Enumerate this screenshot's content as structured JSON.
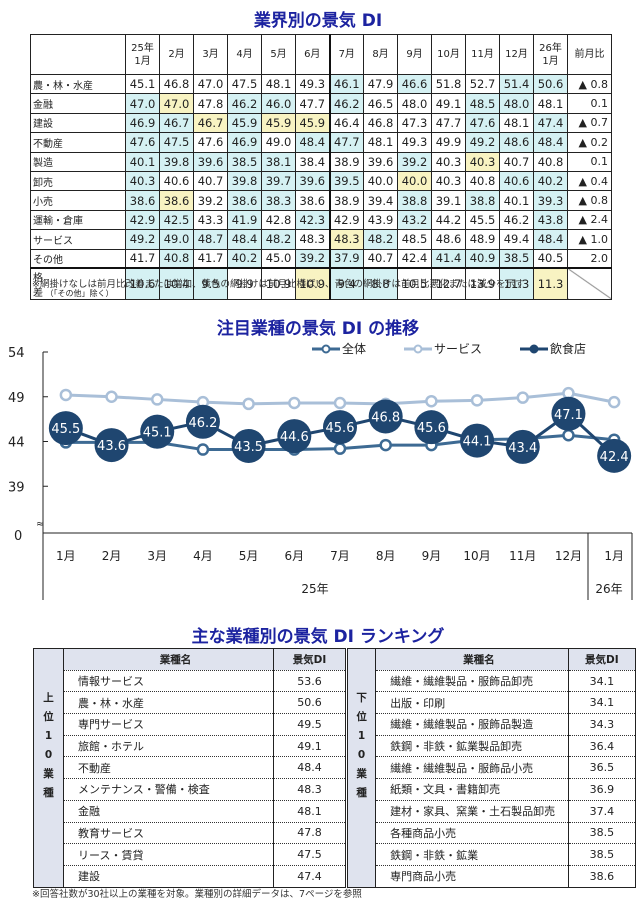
{
  "section1": {
    "title": "業界別の景気 DI",
    "columns": [
      "25年\n1月",
      "2月",
      "3月",
      "4月",
      "5月",
      "6月",
      "7月",
      "8月",
      "9月",
      "10月",
      "11月",
      "12月",
      "26年\n1月",
      "前月比"
    ],
    "rows": [
      {
        "label": "農・林・水産",
        "values": [
          "45.1",
          "46.8",
          "47.0",
          "47.5",
          "48.1",
          "49.3",
          "46.1",
          "47.9",
          "46.6",
          "51.8",
          "52.7",
          "51.4",
          "50.6"
        ],
        "shade": [
          "w",
          "w",
          "w",
          "w",
          "w",
          "w",
          "b",
          "w",
          "b",
          "w",
          "w",
          "b",
          "b"
        ],
        "change": "▲ 0.8"
      },
      {
        "label": "金融",
        "values": [
          "47.0",
          "47.0",
          "47.8",
          "46.2",
          "46.0",
          "47.7",
          "46.2",
          "46.5",
          "48.0",
          "49.1",
          "48.5",
          "48.0",
          "48.1"
        ],
        "shade": [
          "b",
          "y",
          "w",
          "b",
          "b",
          "w",
          "b",
          "w",
          "w",
          "w",
          "b",
          "b",
          "w"
        ],
        "change": "0.1"
      },
      {
        "label": "建設",
        "values": [
          "46.9",
          "46.7",
          "46.7",
          "45.9",
          "45.9",
          "45.9",
          "46.4",
          "46.8",
          "47.3",
          "47.7",
          "47.6",
          "48.1",
          "47.4"
        ],
        "shade": [
          "b",
          "b",
          "y",
          "b",
          "y",
          "y",
          "w",
          "w",
          "w",
          "w",
          "b",
          "w",
          "b"
        ],
        "change": "▲ 0.7"
      },
      {
        "label": "不動産",
        "values": [
          "47.6",
          "47.5",
          "47.6",
          "46.9",
          "49.0",
          "48.4",
          "47.7",
          "48.1",
          "49.3",
          "49.9",
          "49.2",
          "48.6",
          "48.4"
        ],
        "shade": [
          "b",
          "b",
          "w",
          "b",
          "w",
          "b",
          "b",
          "w",
          "w",
          "w",
          "b",
          "b",
          "b"
        ],
        "change": "▲ 0.2"
      },
      {
        "label": "製造",
        "values": [
          "40.1",
          "39.8",
          "39.6",
          "38.5",
          "38.1",
          "38.4",
          "38.9",
          "39.6",
          "39.2",
          "40.3",
          "40.3",
          "40.7",
          "40.8"
        ],
        "shade": [
          "b",
          "b",
          "b",
          "b",
          "b",
          "w",
          "w",
          "w",
          "b",
          "w",
          "y",
          "w",
          "w"
        ],
        "change": "0.1"
      },
      {
        "label": "卸売",
        "values": [
          "40.3",
          "40.6",
          "40.7",
          "39.8",
          "39.7",
          "39.6",
          "39.5",
          "40.0",
          "40.0",
          "40.3",
          "40.8",
          "40.6",
          "40.2"
        ],
        "shade": [
          "b",
          "w",
          "w",
          "b",
          "b",
          "b",
          "b",
          "w",
          "y",
          "w",
          "w",
          "b",
          "b"
        ],
        "change": "▲ 0.4"
      },
      {
        "label": "小売",
        "values": [
          "38.6",
          "38.6",
          "39.2",
          "38.6",
          "38.3",
          "38.6",
          "38.9",
          "39.4",
          "38.8",
          "39.1",
          "38.8",
          "40.1",
          "39.3"
        ],
        "shade": [
          "b",
          "y",
          "w",
          "b",
          "b",
          "w",
          "w",
          "w",
          "b",
          "w",
          "b",
          "w",
          "b"
        ],
        "change": "▲ 0.8"
      },
      {
        "label": "運輸・倉庫",
        "values": [
          "42.9",
          "42.5",
          "43.3",
          "41.9",
          "42.8",
          "42.3",
          "42.9",
          "43.9",
          "43.2",
          "44.2",
          "45.5",
          "46.2",
          "43.8"
        ],
        "shade": [
          "b",
          "b",
          "w",
          "b",
          "w",
          "b",
          "w",
          "w",
          "b",
          "w",
          "w",
          "w",
          "b"
        ],
        "change": "▲ 2.4"
      },
      {
        "label": "サービス",
        "values": [
          "49.2",
          "49.0",
          "48.7",
          "48.4",
          "48.2",
          "48.3",
          "48.3",
          "48.2",
          "48.5",
          "48.6",
          "48.9",
          "49.4",
          "48.4"
        ],
        "shade": [
          "b",
          "b",
          "b",
          "b",
          "b",
          "w",
          "y",
          "b",
          "w",
          "w",
          "w",
          "w",
          "b"
        ],
        "change": "▲ 1.0"
      },
      {
        "label": "その他",
        "values": [
          "41.7",
          "40.8",
          "41.7",
          "40.2",
          "45.0",
          "39.2",
          "37.9",
          "40.7",
          "42.4",
          "41.4",
          "40.9",
          "38.5",
          "40.5"
        ],
        "shade": [
          "w",
          "b",
          "w",
          "b",
          "w",
          "b",
          "b",
          "w",
          "w",
          "b",
          "b",
          "b",
          "w"
        ],
        "change": "2.0"
      }
    ],
    "diff_row": {
      "label": "格差",
      "label_note": "（「その他」除く）",
      "values": [
        "10.6",
        "10.4",
        "9.5",
        "9.9",
        "10.9",
        "10.9",
        "9.4",
        "8.8",
        "10.5",
        "12.7",
        "13.9",
        "11.3",
        "11.3"
      ],
      "shade": [
        "b",
        "b",
        "b",
        "w",
        "w",
        "y",
        "b",
        "b",
        "w",
        "w",
        "w",
        "b",
        "y"
      ],
      "change": ""
    },
    "note": "※網掛けなしは前月比改善または増加、黄色の網掛けは前月比横ばい、青色の網掛けは前月比悪化または減少を示す",
    "colors": {
      "blue": "#d5f1f3",
      "yellow": "#f8f3c2"
    }
  },
  "chart_data": {
    "type": "line",
    "title": "注目業種の景気 DI の推移",
    "categories": [
      "1月",
      "2月",
      "3月",
      "4月",
      "5月",
      "6月",
      "7月",
      "8月",
      "9月",
      "10月",
      "11月",
      "12月",
      "1月"
    ],
    "year_labels": [
      {
        "label": "25年",
        "span": 12
      },
      {
        "label": "26年",
        "span": 1
      }
    ],
    "yticks": [
      0,
      39,
      44,
      49,
      54
    ],
    "ylim": [
      39,
      54
    ],
    "axis_break": true,
    "legend_position": "top-right",
    "series": [
      {
        "name": "全体",
        "color": "#3d6a93",
        "values": [
          43.9,
          43.9,
          43.9,
          43.1,
          43.1,
          43.1,
          43.2,
          43.6,
          43.6,
          44.2,
          44.3,
          44.7,
          44.2
        ]
      },
      {
        "name": "サービス",
        "color": "#a9bfd8",
        "values": [
          49.2,
          49.0,
          48.7,
          48.4,
          48.2,
          48.3,
          48.3,
          48.2,
          48.5,
          48.6,
          48.9,
          49.4,
          48.4
        ]
      },
      {
        "name": "飲食店",
        "color": "#1f4670",
        "values": [
          45.5,
          43.6,
          45.1,
          46.2,
          43.5,
          44.6,
          45.6,
          46.8,
          45.6,
          44.1,
          43.4,
          47.1,
          42.4
        ],
        "labeled": true
      }
    ]
  },
  "section3": {
    "title": "主な業種別の景気 DI ランキング",
    "col_name": "業種名",
    "col_value": "景気DI",
    "top_label": "上位10業種",
    "bottom_label": "下位10業種",
    "top": [
      {
        "name": "情報サービス",
        "value": "53.6"
      },
      {
        "name": "農・林・水産",
        "value": "50.6"
      },
      {
        "name": "専門サービス",
        "value": "49.5"
      },
      {
        "name": "旅館・ホテル",
        "value": "49.1"
      },
      {
        "name": "不動産",
        "value": "48.4"
      },
      {
        "name": "メンテナンス・警備・検査",
        "value": "48.3"
      },
      {
        "name": "金融",
        "value": "48.1"
      },
      {
        "name": "教育サービス",
        "value": "47.8"
      },
      {
        "name": "リース・賃貸",
        "value": "47.5"
      },
      {
        "name": "建設",
        "value": "47.4"
      }
    ],
    "bottom": [
      {
        "name": "繊維・繊維製品・服飾品卸売",
        "value": "34.1"
      },
      {
        "name": "出版・印刷",
        "value": "34.1"
      },
      {
        "name": "繊維・繊維製品・服飾品製造",
        "value": "34.3"
      },
      {
        "name": "鉄鋼・非鉄・鉱業製品卸売",
        "value": "36.4"
      },
      {
        "name": "繊維・繊維製品・服飾品小売",
        "value": "36.5"
      },
      {
        "name": "紙類・文具・書籍卸売",
        "value": "36.9"
      },
      {
        "name": "建材・家具、窯業・土石製品卸売",
        "value": "37.4"
      },
      {
        "name": "各種商品小売",
        "value": "38.5"
      },
      {
        "name": "鉄鋼・非鉄・鉱業",
        "value": "38.5"
      },
      {
        "name": "専門商品小売",
        "value": "38.6"
      }
    ],
    "note": "※回答社数が30社以上の業種を対象。業種別の詳細データは、7ページを参照"
  }
}
